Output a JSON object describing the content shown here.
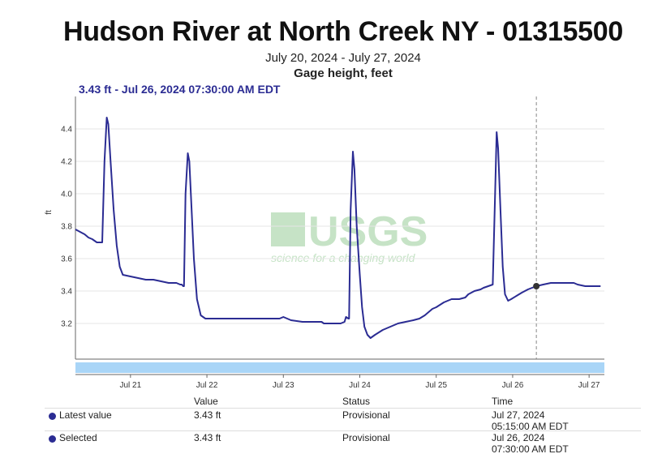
{
  "page": {
    "title": "Hudson River at North Creek NY - 01315500",
    "date_range": "July 20, 2024 - July 27, 2024",
    "parameter": "Gage height, feet",
    "tooltip": "3.43 ft - Jul 26, 2024 07:30:00 AM EDT",
    "watermark_main": "USGS",
    "watermark_sub": "science for a changing world"
  },
  "table": {
    "headers": [
      "Value",
      "Status",
      "Time"
    ],
    "rows": [
      {
        "label": "Latest value",
        "value": "3.43 ft",
        "status": "Provisional",
        "time_line1": "Jul 27, 2024",
        "time_line2": "05:15:00 AM EDT"
      },
      {
        "label": "Selected",
        "value": "3.43 ft",
        "status": "Provisional",
        "time_line1": "Jul 26, 2024",
        "time_line2": "07:30:00 AM EDT"
      }
    ]
  },
  "colors": {
    "series": "#2b2c93",
    "band": "#a9d5f7",
    "grid": "#e6e6e6"
  },
  "chart_data": {
    "type": "line",
    "title": "Hudson River at North Creek NY - 01315500",
    "subtitle": "July 20, 2024 - July 27, 2024",
    "ylabel": "ft",
    "xlabel": "",
    "x_ticks": [
      {
        "label": "Jul 21",
        "day": 21.0
      },
      {
        "label": "Jul 22",
        "day": 22.0
      },
      {
        "label": "Jul 23",
        "day": 23.0
      },
      {
        "label": "Jul 24",
        "day": 24.0
      },
      {
        "label": "Jul 25",
        "day": 25.0
      },
      {
        "label": "Jul 26",
        "day": 26.0
      },
      {
        "label": "Jul 27",
        "day": 27.0
      }
    ],
    "y_ticks": [
      3.2,
      3.4,
      3.6,
      3.8,
      4.0,
      4.2,
      4.4
    ],
    "xlim": [
      20.28,
      27.2
    ],
    "ylim": [
      2.98,
      4.6
    ],
    "grid": true,
    "selected_point": {
      "day": 26.31,
      "value": 3.43
    },
    "series": [
      {
        "values": [
          [
            20.28,
            3.78
          ],
          [
            20.32,
            3.77
          ],
          [
            20.36,
            3.76
          ],
          [
            20.4,
            3.75
          ],
          [
            20.45,
            3.73
          ],
          [
            20.5,
            3.72
          ],
          [
            20.56,
            3.7
          ],
          [
            20.63,
            3.7
          ],
          [
            20.66,
            4.2
          ],
          [
            20.69,
            4.47
          ],
          [
            20.71,
            4.43
          ],
          [
            20.74,
            4.2
          ],
          [
            20.78,
            3.9
          ],
          [
            20.82,
            3.68
          ],
          [
            20.86,
            3.55
          ],
          [
            20.9,
            3.5
          ],
          [
            21.0,
            3.49
          ],
          [
            21.1,
            3.48
          ],
          [
            21.2,
            3.47
          ],
          [
            21.3,
            3.47
          ],
          [
            21.4,
            3.46
          ],
          [
            21.5,
            3.45
          ],
          [
            21.6,
            3.45
          ],
          [
            21.65,
            3.44
          ],
          [
            21.67,
            3.44
          ],
          [
            21.69,
            3.43
          ],
          [
            21.7,
            3.43
          ],
          [
            21.72,
            4.0
          ],
          [
            21.75,
            4.25
          ],
          [
            21.77,
            4.2
          ],
          [
            21.8,
            3.9
          ],
          [
            21.83,
            3.6
          ],
          [
            21.87,
            3.35
          ],
          [
            21.92,
            3.25
          ],
          [
            21.98,
            3.23
          ],
          [
            22.2,
            3.23
          ],
          [
            22.4,
            3.23
          ],
          [
            22.6,
            3.23
          ],
          [
            22.8,
            3.23
          ],
          [
            22.95,
            3.23
          ],
          [
            23.0,
            3.24
          ],
          [
            23.05,
            3.23
          ],
          [
            23.1,
            3.22
          ],
          [
            23.25,
            3.21
          ],
          [
            23.4,
            3.21
          ],
          [
            23.5,
            3.21
          ],
          [
            23.53,
            3.2
          ],
          [
            23.6,
            3.2
          ],
          [
            23.7,
            3.2
          ],
          [
            23.75,
            3.2
          ],
          [
            23.8,
            3.21
          ],
          [
            23.82,
            3.24
          ],
          [
            23.85,
            3.23
          ],
          [
            23.86,
            3.23
          ],
          [
            23.88,
            3.9
          ],
          [
            23.91,
            4.26
          ],
          [
            23.93,
            4.15
          ],
          [
            23.96,
            3.8
          ],
          [
            24.0,
            3.5
          ],
          [
            24.03,
            3.3
          ],
          [
            24.06,
            3.18
          ],
          [
            24.1,
            3.13
          ],
          [
            24.14,
            3.11
          ],
          [
            24.2,
            3.13
          ],
          [
            24.3,
            3.16
          ],
          [
            24.4,
            3.18
          ],
          [
            24.5,
            3.2
          ],
          [
            24.6,
            3.21
          ],
          [
            24.7,
            3.22
          ],
          [
            24.78,
            3.23
          ],
          [
            24.85,
            3.25
          ],
          [
            24.9,
            3.27
          ],
          [
            24.95,
            3.29
          ],
          [
            25.0,
            3.3
          ],
          [
            25.1,
            3.33
          ],
          [
            25.2,
            3.35
          ],
          [
            25.3,
            3.35
          ],
          [
            25.38,
            3.36
          ],
          [
            25.42,
            3.38
          ],
          [
            25.5,
            3.4
          ],
          [
            25.58,
            3.41
          ],
          [
            25.62,
            3.42
          ],
          [
            25.68,
            3.43
          ],
          [
            25.74,
            3.44
          ],
          [
            25.77,
            4.0
          ],
          [
            25.79,
            4.38
          ],
          [
            25.81,
            4.28
          ],
          [
            25.84,
            3.9
          ],
          [
            25.87,
            3.55
          ],
          [
            25.9,
            3.38
          ],
          [
            25.94,
            3.34
          ],
          [
            25.98,
            3.35
          ],
          [
            26.05,
            3.37
          ],
          [
            26.12,
            3.39
          ],
          [
            26.2,
            3.41
          ],
          [
            26.31,
            3.43
          ],
          [
            26.4,
            3.44
          ],
          [
            26.5,
            3.45
          ],
          [
            26.6,
            3.45
          ],
          [
            26.7,
            3.45
          ],
          [
            26.8,
            3.45
          ],
          [
            26.85,
            3.44
          ],
          [
            26.95,
            3.43
          ],
          [
            27.05,
            3.43
          ],
          [
            27.15,
            3.43
          ]
        ]
      }
    ]
  }
}
